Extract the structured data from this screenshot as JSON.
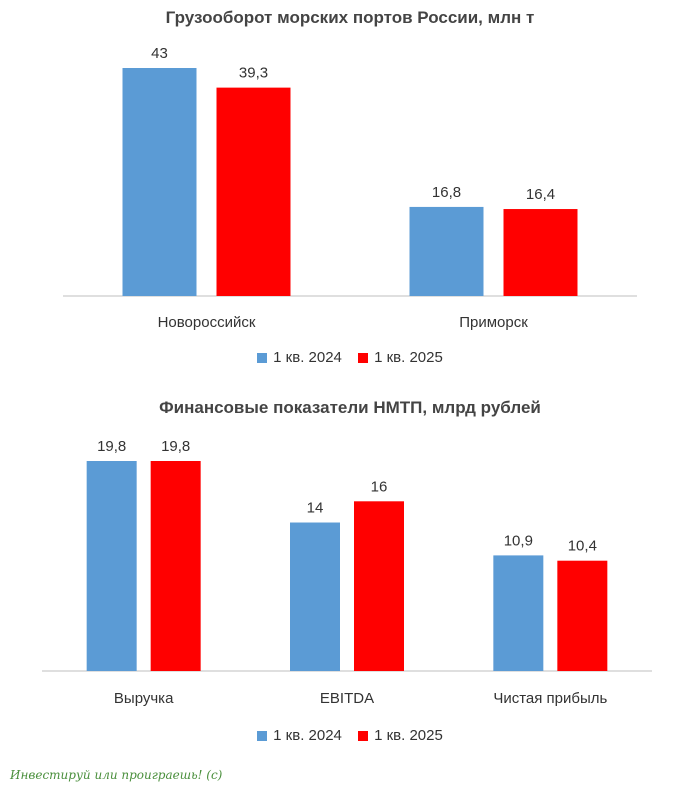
{
  "colors": {
    "series_2024": "#5b9bd5",
    "series_2025": "#ff0000",
    "axis": "#bfbfbf"
  },
  "chart_data": [
    {
      "type": "bar",
      "title": "Грузооборот морских портов России, млн т",
      "categories": [
        "Новороссийск",
        "Приморск"
      ],
      "series": [
        {
          "name": "1 кв. 2024",
          "values": [
            43,
            16.8
          ],
          "labels": [
            "43",
            "16,8"
          ]
        },
        {
          "name": "1 кв. 2025",
          "values": [
            39.3,
            16.4
          ],
          "labels": [
            "39,3",
            "16,4"
          ]
        }
      ],
      "xlabel": "",
      "ylabel": "",
      "ylim": [
        0,
        43
      ],
      "grid": false,
      "legend": "bottom"
    },
    {
      "type": "bar",
      "title": "Финансовые показатели НМТП, млрд рублей",
      "categories": [
        "Выручка",
        "EBITDA",
        "Чистая прибыль"
      ],
      "series": [
        {
          "name": "1 кв. 2024",
          "values": [
            19.8,
            14,
            10.9
          ],
          "labels": [
            "19,8",
            "14",
            "10,9"
          ]
        },
        {
          "name": "1 кв. 2025",
          "values": [
            19.8,
            16,
            10.4
          ],
          "labels": [
            "19,8",
            "16",
            "10,4"
          ]
        }
      ],
      "xlabel": "",
      "ylabel": "",
      "ylim": [
        0,
        19.8
      ],
      "grid": false,
      "legend": "bottom"
    }
  ],
  "watermark": "Инвестируй или проиграешь! (с)"
}
